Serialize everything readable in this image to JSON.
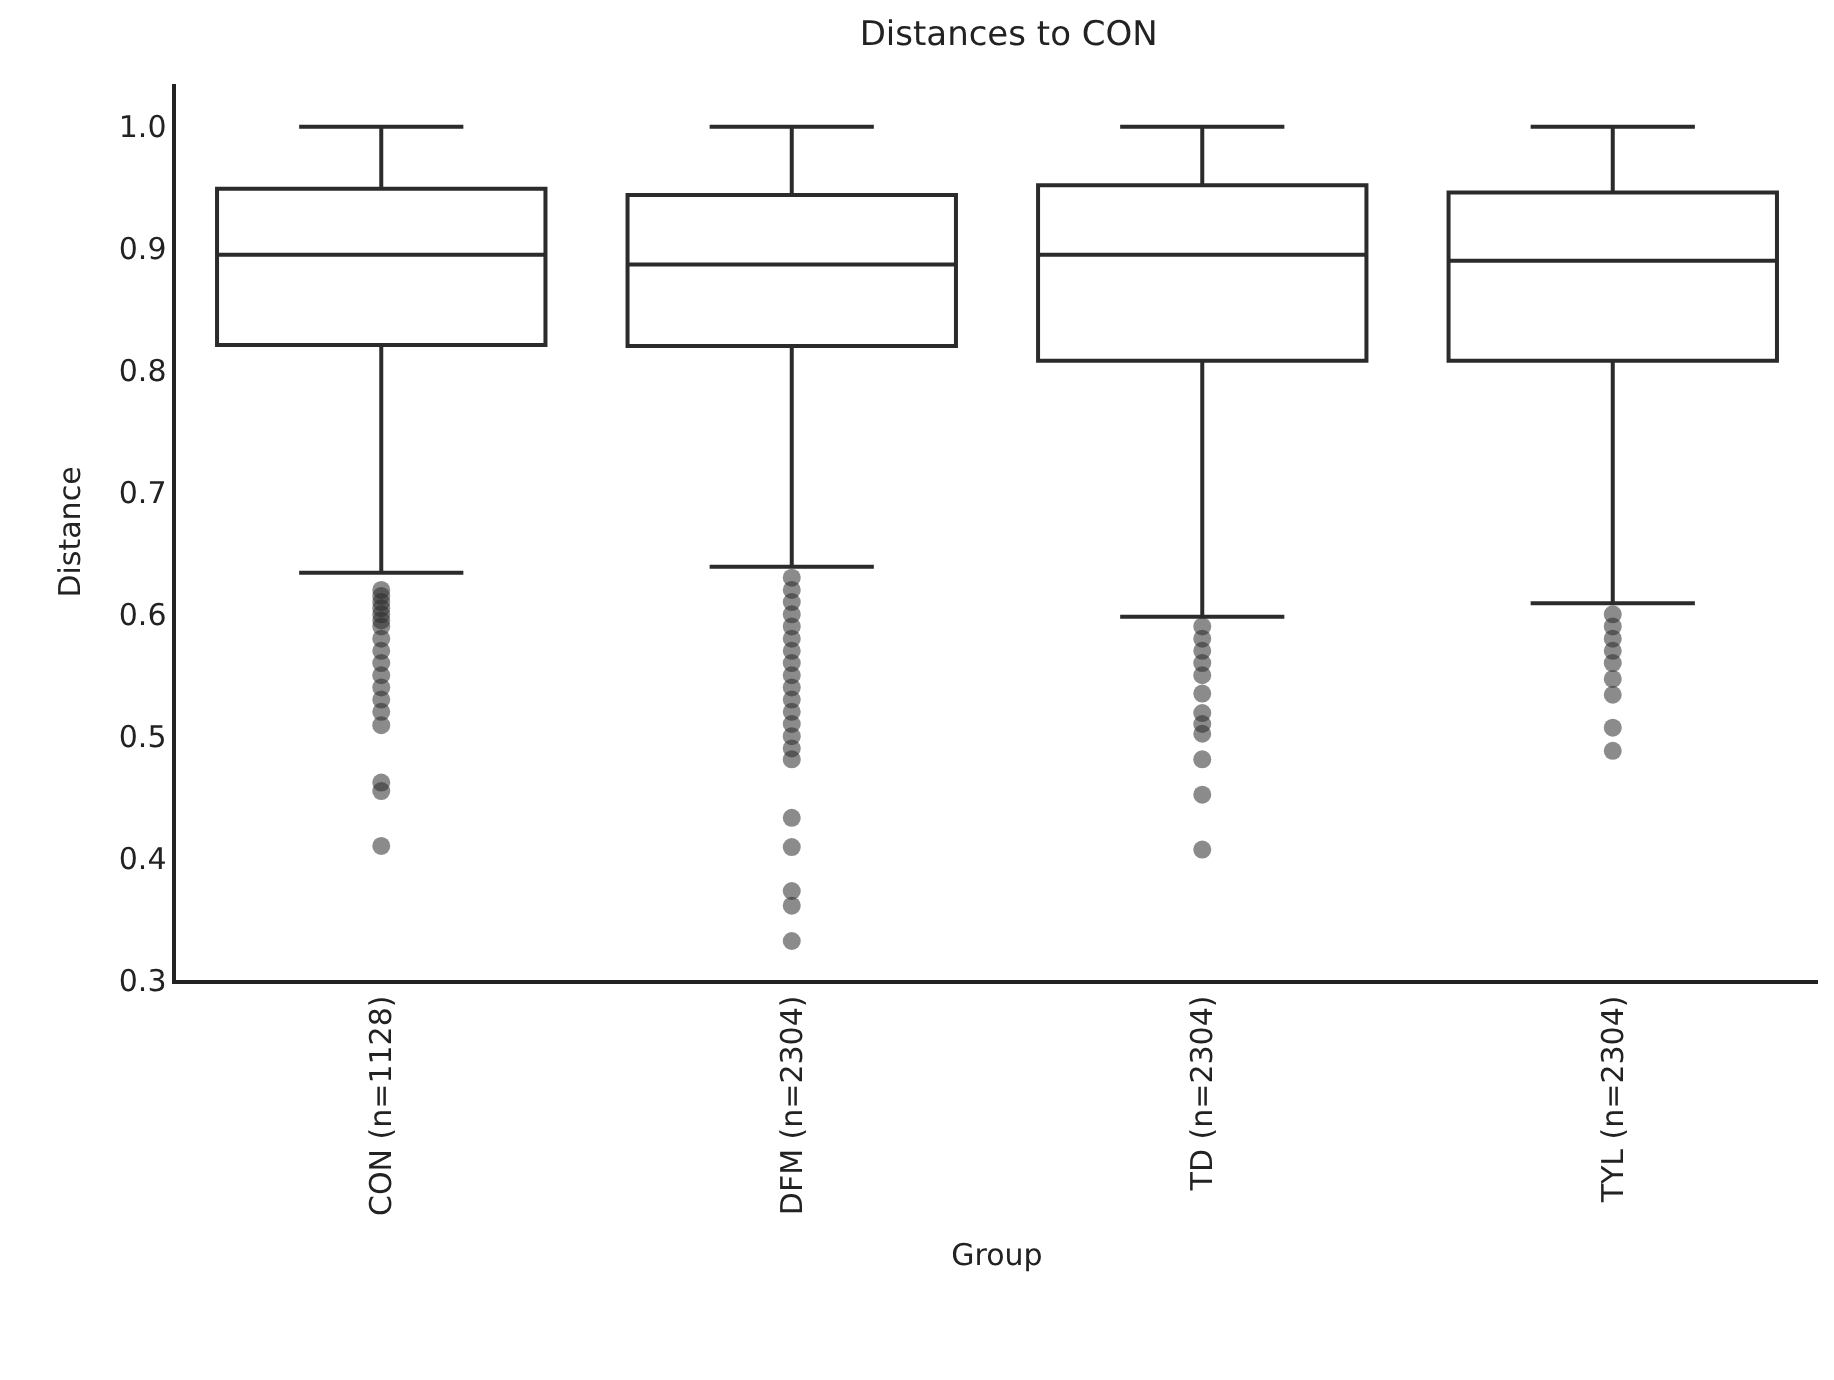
{
  "chart_data": {
    "type": "box",
    "title": "Distances to CON",
    "xlabel": "Group",
    "ylabel": "Distance",
    "categories": [
      "CON (n=1128)",
      "DFM (n=2304)",
      "TD (n=2304)",
      "TYL (n=2304)"
    ],
    "ylim": [
      0.3,
      1.035
    ],
    "yticks": [
      0.3,
      0.4,
      0.5,
      0.6,
      0.7,
      0.8,
      0.9,
      {
        "value": 1,
        "label": "1.0"
      }
    ],
    "series": [
      {
        "color": "#2b2b2b",
        "boxes": [
          {
            "low": 0.634,
            "q1": 0.821,
            "median": 0.895,
            "q3": 0.949,
            "high": 1.0,
            "outliers": [
              0.62,
              0.615,
              0.61,
              0.605,
              0.6,
              0.595,
              0.59,
              0.58,
              0.57,
              0.56,
              0.55,
              0.54,
              0.53,
              0.52,
              0.509,
              0.462,
              0.455,
              0.41
            ]
          },
          {
            "low": 0.639,
            "q1": 0.82,
            "median": 0.887,
            "q3": 0.944,
            "high": 1.0,
            "outliers": [
              0.63,
              0.62,
              0.61,
              0.6,
              0.59,
              0.58,
              0.57,
              0.56,
              0.55,
              0.54,
              0.53,
              0.52,
              0.51,
              0.5,
              0.49,
              0.481,
              0.433,
              0.409,
              0.373,
              0.361,
              0.332
            ]
          },
          {
            "low": 0.598,
            "q1": 0.808,
            "median": 0.895,
            "q3": 0.952,
            "high": 1.0,
            "outliers": [
              0.59,
              0.58,
              0.57,
              0.56,
              0.55,
              0.535,
              0.519,
              0.51,
              0.502,
              0.481,
              0.452,
              0.407
            ]
          },
          {
            "low": 0.609,
            "q1": 0.808,
            "median": 0.89,
            "q3": 0.946,
            "high": 1.0,
            "outliers": [
              0.6,
              0.59,
              0.58,
              0.57,
              0.56,
              0.547,
              0.534,
              0.507,
              0.488
            ]
          }
        ]
      }
    ]
  }
}
